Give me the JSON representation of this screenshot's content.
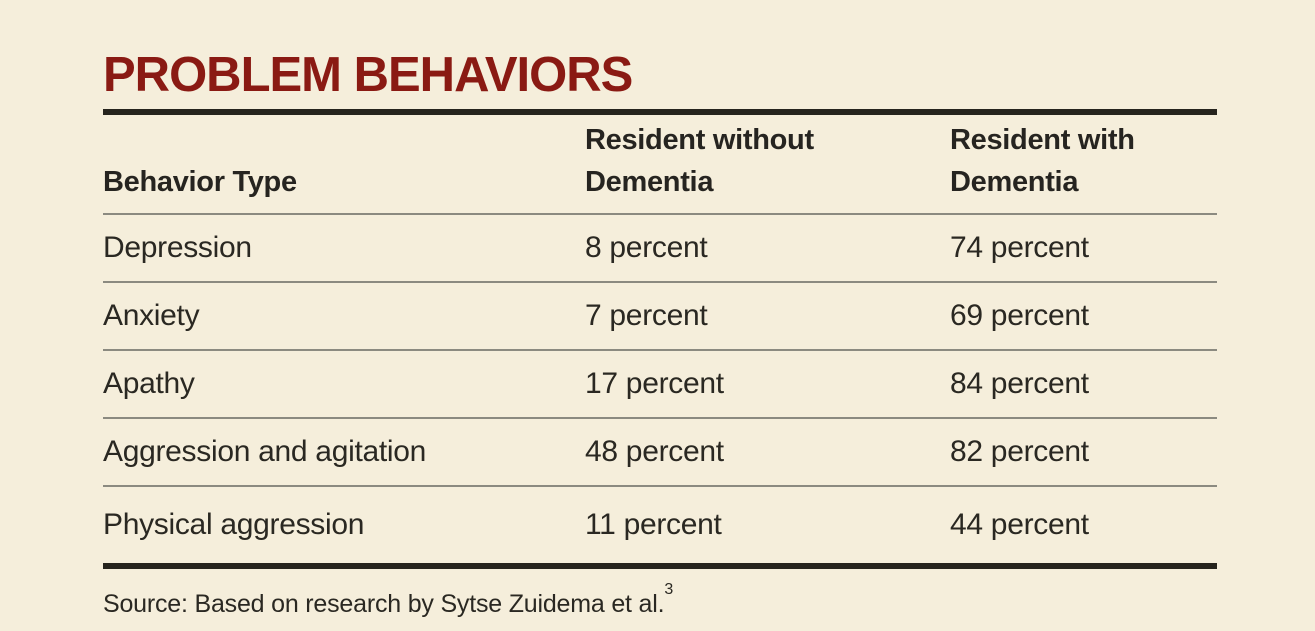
{
  "title": "PROBLEM BEHAVIORS",
  "colors": {
    "background": "#F5EEDB",
    "title_text": "#8A1A13",
    "thick_rule": "#26241D",
    "thin_rule": "#8B8A80",
    "body_text": "#2A2822"
  },
  "table": {
    "headers": {
      "behavior": "Behavior Type",
      "without": "Resident without Dementia",
      "with": "Resident with Dementia"
    },
    "rows": [
      {
        "behavior": "Depression",
        "without": "8 percent",
        "with": "74 percent"
      },
      {
        "behavior": "Anxiety",
        "without": "7 percent",
        "with": "69 percent"
      },
      {
        "behavior": "Apathy",
        "without": "17 percent",
        "with": "84 percent"
      },
      {
        "behavior": "Aggression and agitation",
        "without": "48 percent",
        "with": "82 percent"
      },
      {
        "behavior": "Physical aggression",
        "without": "11 percent",
        "with": "44 percent"
      }
    ]
  },
  "source": {
    "text": "Source: Based on research by Sytse Zuidema et al.",
    "superscript": "3"
  },
  "chart_data": {
    "type": "table",
    "title": "PROBLEM BEHAVIORS",
    "columns": [
      "Behavior Type",
      "Resident without Dementia",
      "Resident with Dementia"
    ],
    "rows": [
      [
        "Depression",
        "8 percent",
        "74 percent"
      ],
      [
        "Anxiety",
        "7 percent",
        "69 percent"
      ],
      [
        "Apathy",
        "17 percent",
        "84 percent"
      ],
      [
        "Aggression and agitation",
        "48 percent",
        "82 percent"
      ],
      [
        "Physical aggression",
        "11 percent",
        "44 percent"
      ]
    ],
    "values_without_dementia_pct": [
      8,
      7,
      17,
      48,
      11
    ],
    "values_with_dementia_pct": [
      74,
      69,
      84,
      82,
      44
    ],
    "annotations": [
      "Source: Based on research by Sytse Zuidema et al.3"
    ],
    "layout": {
      "grid": "horizontal-rules-only",
      "legend": "none"
    }
  }
}
